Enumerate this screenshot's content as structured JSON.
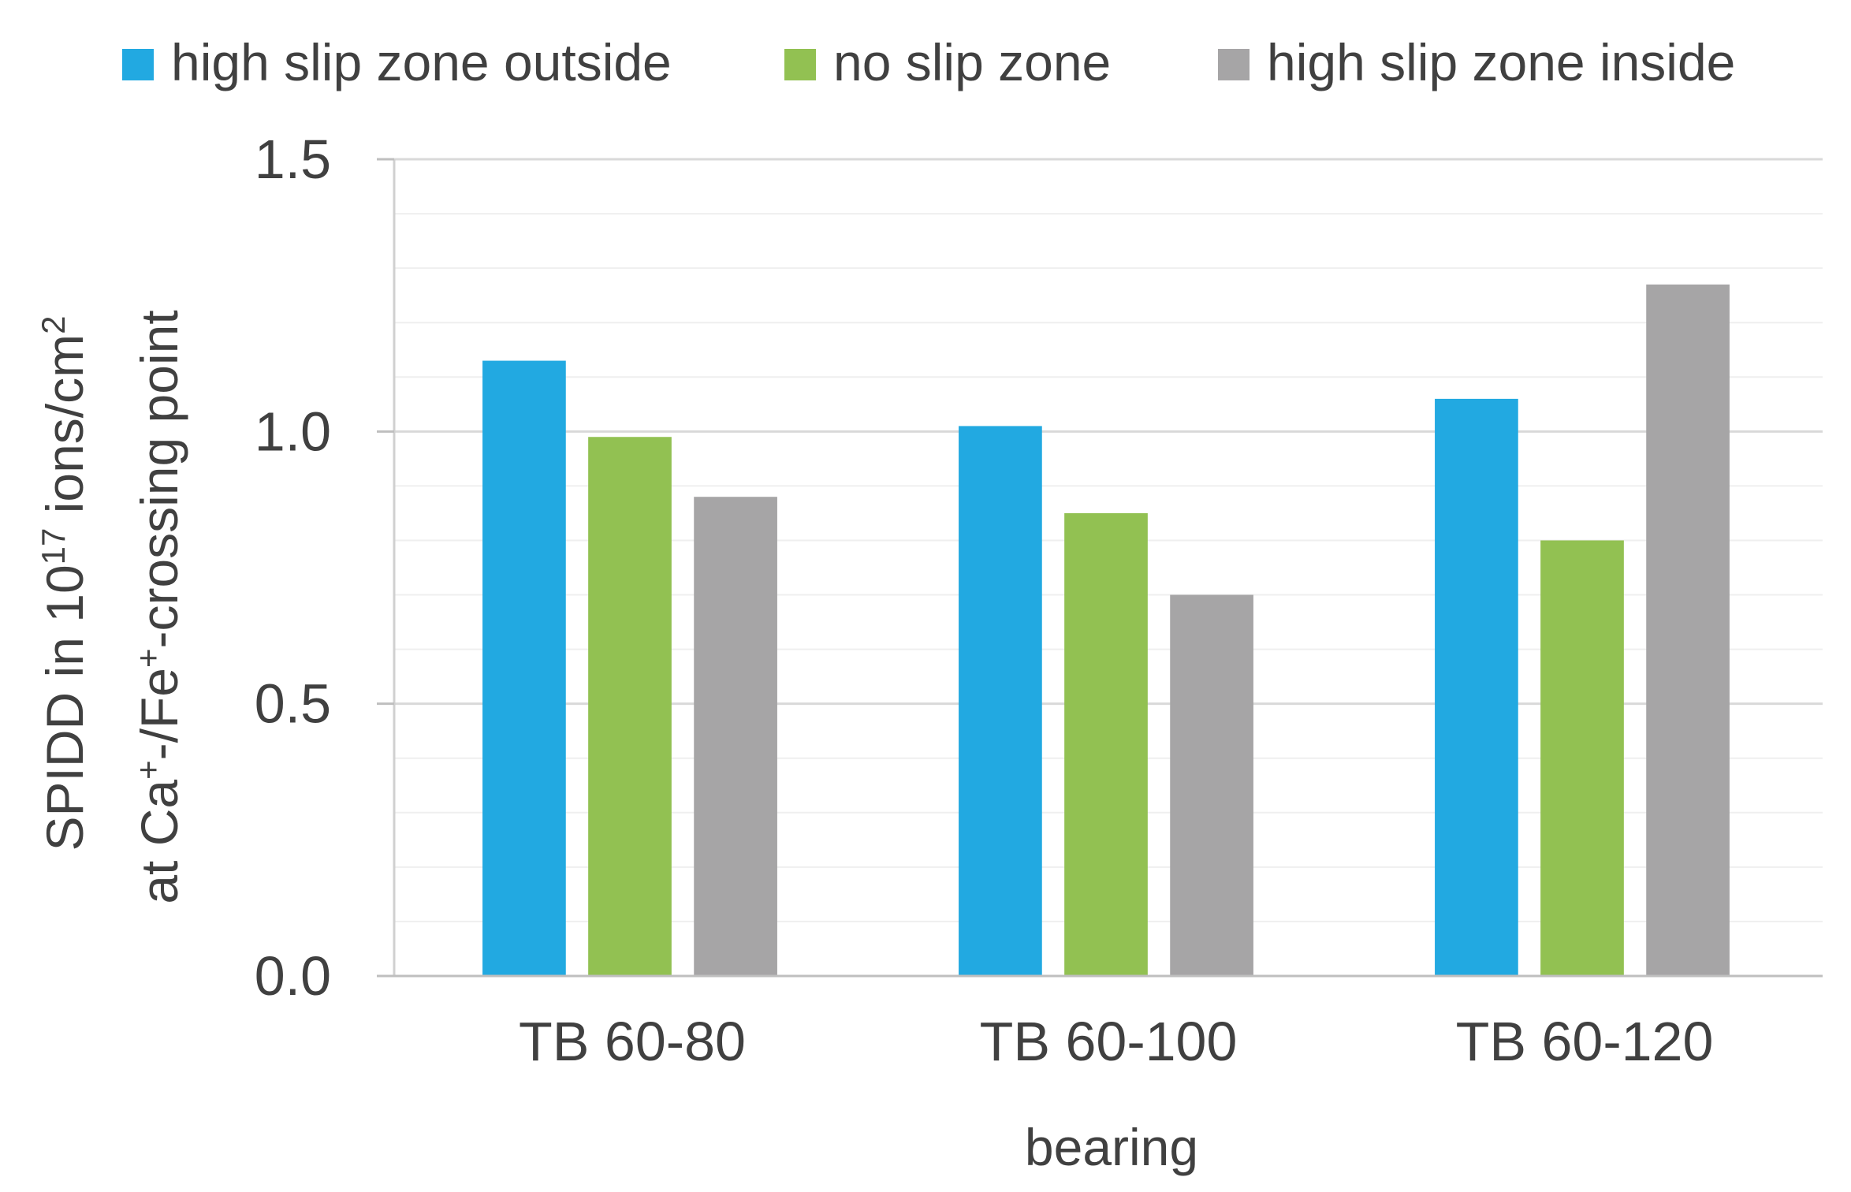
{
  "chart_data": {
    "type": "bar",
    "title": "",
    "xlabel": "bearing",
    "ylabel": {
      "line1_prefix": "SPIDD in 10",
      "line1_sup": "17",
      "line1_mid": " ions/cm",
      "line1_sup2": "2",
      "line2_prefix": "at Ca",
      "line2_sup": "+",
      "line2_mid": "-/Fe",
      "line2_sup2": "+",
      "line2_suffix": "-crossing point"
    },
    "categories": [
      "TB 60-80",
      "TB 60-100",
      "TB 60-120"
    ],
    "series": [
      {
        "name": "high slip zone outside",
        "color": "#22a9e1",
        "values": [
          1.13,
          1.01,
          1.06
        ]
      },
      {
        "name": "no slip zone",
        "color": "#92c152",
        "values": [
          0.99,
          0.85,
          0.8
        ]
      },
      {
        "name": "high slip zone inside",
        "color": "#a6a5a6",
        "values": [
          0.88,
          0.7,
          1.27
        ]
      }
    ],
    "ylim": [
      0,
      1.5
    ],
    "yticks": [
      0.0,
      0.5,
      1.0,
      1.5
    ],
    "ytick_labels": [
      "0.0",
      "0.5",
      "1.0",
      "1.5"
    ],
    "minor_gridlines": 0.1,
    "grid": true,
    "legend_position": "top"
  }
}
